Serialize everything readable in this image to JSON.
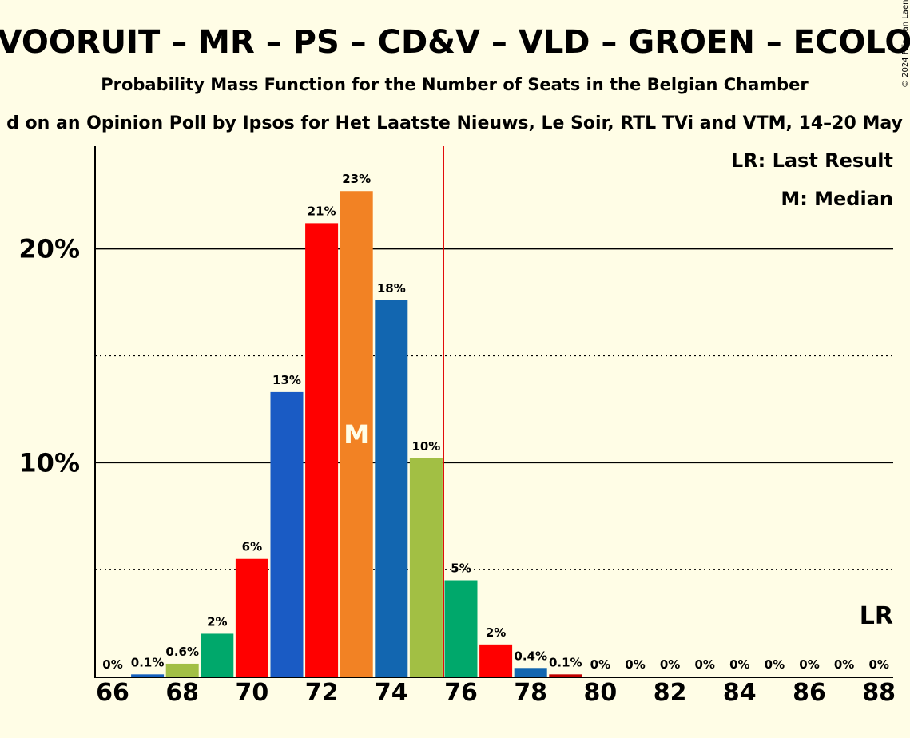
{
  "chart_data": {
    "type": "bar",
    "title": "VOORUIT – MR – PS – CD&V – VLD – GROEN – ECOLO",
    "subtitle": "Probability Mass Function for the Number of Seats in the Belgian Chamber",
    "source": "d on an Opinion Poll by Ipsos for Het Laatste Nieuws, Le Soir, RTL TVi and VTM, 14–20 May",
    "copyright": "© 2024 Filip van Laenen",
    "x": [
      66,
      67,
      68,
      69,
      70,
      71,
      72,
      73,
      74,
      75,
      76,
      77,
      78,
      79,
      80,
      81,
      82,
      83,
      84,
      85,
      86,
      87,
      88
    ],
    "values": [
      0,
      0.1,
      0.6,
      2.0,
      5.5,
      13.3,
      21.2,
      22.7,
      17.6,
      10.2,
      4.5,
      1.5,
      0.4,
      0.1,
      0,
      0,
      0,
      0,
      0,
      0,
      0,
      0,
      0
    ],
    "data_labels": [
      "0%",
      "0.1%",
      "0.6%",
      "2%",
      "6%",
      "13%",
      "21%",
      "23%",
      "18%",
      "10%",
      "5%",
      "2%",
      "0.4%",
      "0.1%",
      "0%",
      "0%",
      "0%",
      "0%",
      "0%",
      "0%",
      "0%",
      "0%",
      "0%"
    ],
    "colors": [
      "#009e6b",
      "#1560bd",
      "#a2bf44",
      "#00a86b",
      "#ff0000",
      "#1a5bc4",
      "#ff0000",
      "#f28224",
      "#1266b0",
      "#a2bf44",
      "#00a86b",
      "#ff0000",
      "#1266b0",
      "#c00000",
      "#009e6b",
      "#1560bd",
      "#a2bf44",
      "#00a86b",
      "#ff0000",
      "#1a5bc4",
      "#ff0000",
      "#f28224",
      "#1266b0"
    ],
    "x_tick_labels": [
      "66",
      "68",
      "70",
      "72",
      "74",
      "76",
      "78",
      "80",
      "82",
      "84",
      "86",
      "88"
    ],
    "y_tick_labels": [
      {
        "value": 10,
        "label": "10%"
      },
      {
        "value": 20,
        "label": "20%"
      }
    ],
    "y_solid_gridlines": [
      10,
      20
    ],
    "y_dotted_gridlines": [
      5,
      15
    ],
    "ylim": [
      0,
      24.8
    ],
    "majority_line_x": 75.5,
    "median_x": 73,
    "median_mark": "M",
    "last_result_mark": "LR",
    "legend": {
      "last_result": "LR: Last Result",
      "median": "M: Median"
    },
    "colors_meta": {
      "background": "#fffde6",
      "majority_line": "#e00000"
    }
  }
}
